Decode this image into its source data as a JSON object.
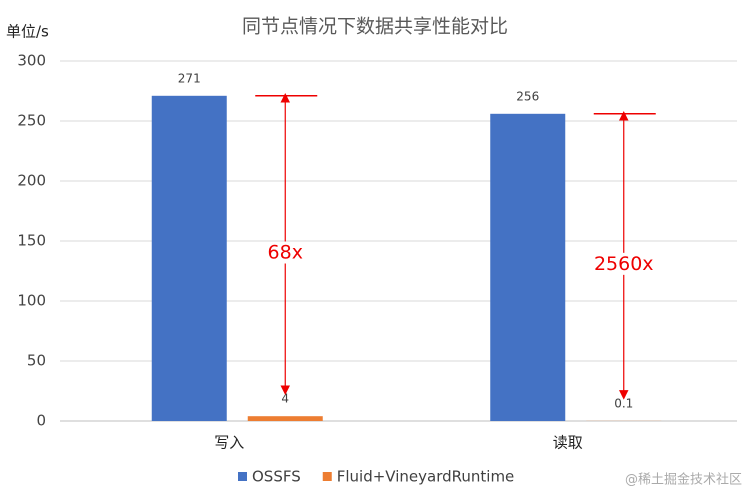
{
  "chart_data": {
    "type": "bar",
    "title": "同节点情况下数据共享性能对比",
    "y_label": "单位/s",
    "categories": [
      "写入",
      "读取"
    ],
    "series": [
      {
        "name": "OSSFS",
        "color": "#4472c4",
        "values": [
          271,
          256
        ]
      },
      {
        "name": "Fluid+VineyardRuntime",
        "color": "#ed7d31",
        "values": [
          4,
          0.1
        ]
      }
    ],
    "ylim": [
      0,
      300
    ],
    "yticks": [
      0,
      50,
      100,
      150,
      200,
      250,
      300
    ],
    "grid": true,
    "annotations": [
      "68x",
      "2560x"
    ],
    "watermark": "@稀土掘金技术社区"
  }
}
